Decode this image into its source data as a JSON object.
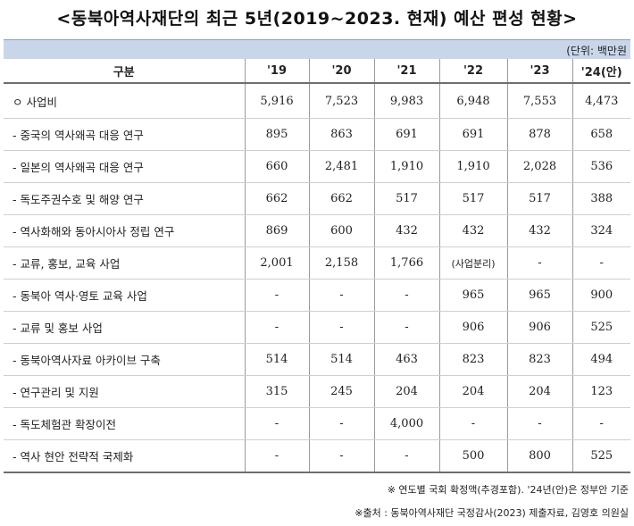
{
  "title": "<동북아역사재단의 최근 5년(2019~2023. 현재) 예산 편성 현황>",
  "unit": "(단위: 백만원",
  "table": {
    "headers": [
      "구분",
      "'19",
      "'20",
      "'21",
      "'22",
      "'23",
      "'24(안)"
    ],
    "rows": [
      {
        "label": "ㅇ 사업비",
        "values": [
          "5,916",
          "7,523",
          "9,983",
          "6,948",
          "7,553",
          "4,473"
        ]
      },
      {
        "label": "- 중국의 역사왜곡 대응 연구",
        "values": [
          "895",
          "863",
          "691",
          "691",
          "878",
          "658"
        ]
      },
      {
        "label": "- 일본의 역사왜곡 대응 연구",
        "values": [
          "660",
          "2,481",
          "1,910",
          "1,910",
          "2,028",
          "536"
        ]
      },
      {
        "label": "- 독도주권수호 및 해양 연구",
        "values": [
          "662",
          "662",
          "517",
          "517",
          "517",
          "388"
        ]
      },
      {
        "label": "- 역사화해와 동아시아사 정립 연구",
        "values": [
          "869",
          "600",
          "432",
          "432",
          "432",
          "324"
        ]
      },
      {
        "label": "- 교류, 홍보, 교육 사업",
        "values": [
          "2,001",
          "2,158",
          "1,766",
          "(사업분리)",
          "-",
          "-"
        ]
      },
      {
        "label": "- 동북아 역사·영토 교육 사업",
        "values": [
          "-",
          "-",
          "-",
          "965",
          "965",
          "900"
        ]
      },
      {
        "label": "- 교류 및 홍보 사업",
        "values": [
          "-",
          "-",
          "-",
          "906",
          "906",
          "525"
        ]
      },
      {
        "label": "- 동북아역사자료 아카이브 구축",
        "values": [
          "514",
          "514",
          "463",
          "823",
          "823",
          "494"
        ]
      },
      {
        "label": "- 연구관리 및 지원",
        "values": [
          "315",
          "245",
          "204",
          "204",
          "204",
          "123"
        ]
      },
      {
        "label": "- 독도체험관 확장이전",
        "values": [
          "-",
          "-",
          "4,000",
          "-",
          "-",
          "-"
        ]
      },
      {
        "label": "- 역사 현안 전략적 국제화",
        "values": [
          "-",
          "-",
          "-",
          "500",
          "800",
          "525"
        ]
      }
    ]
  },
  "notes": {
    "note1": "※ 연도별 국회 확정액(추경포함). '24년(안)은 정부안 기준",
    "note2": "※출처 : 동북아역사재단 국정감사(2023) 제출자료, 김영호 의원실"
  }
}
